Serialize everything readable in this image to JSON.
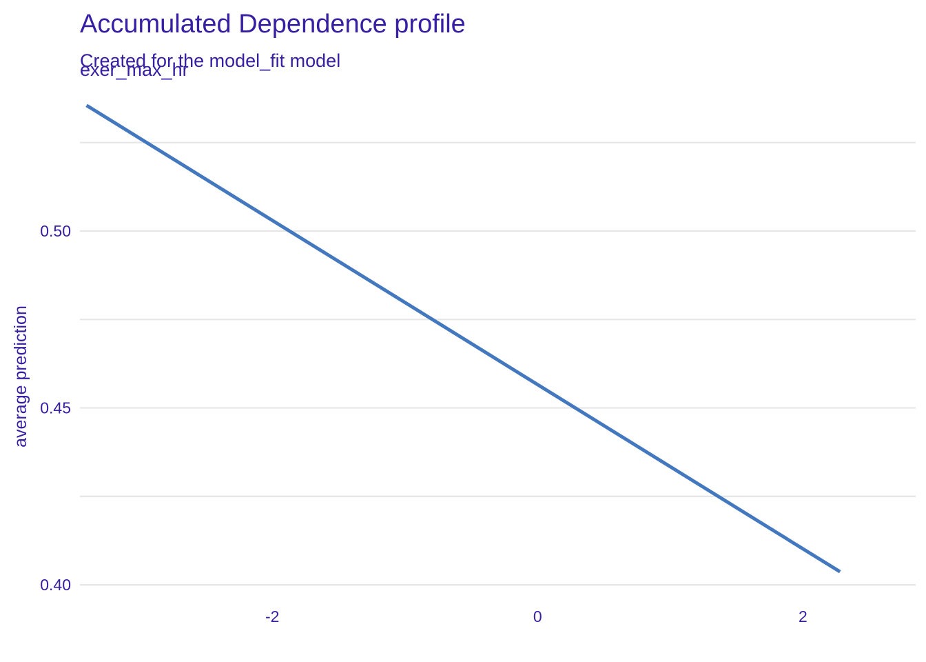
{
  "chart_data": {
    "type": "line",
    "title": "Accumulated Dependence profile",
    "subtitle": "Created for the model_fit model",
    "facet_label": "exer_max_hr",
    "xlabel": "",
    "ylabel": "average prediction",
    "xlim": [
      -3.45,
      2.85
    ],
    "ylim": [
      0.3973,
      0.5419
    ],
    "x_ticks": [
      -2,
      0,
      2
    ],
    "x_tick_labels": [
      "-2",
      "0",
      "2"
    ],
    "y_ticks": [
      0.4,
      0.45,
      0.5
    ],
    "y_tick_labels": [
      "0.40",
      "0.45",
      "0.50"
    ],
    "y_minor_gridlines": [
      0.425,
      0.475,
      0.525
    ],
    "grid": true,
    "legend": "none",
    "series": [
      {
        "color": "#4378bf",
        "x": [
          -3.4,
          2.28
        ],
        "y": [
          0.5355,
          0.4037
        ]
      }
    ]
  }
}
